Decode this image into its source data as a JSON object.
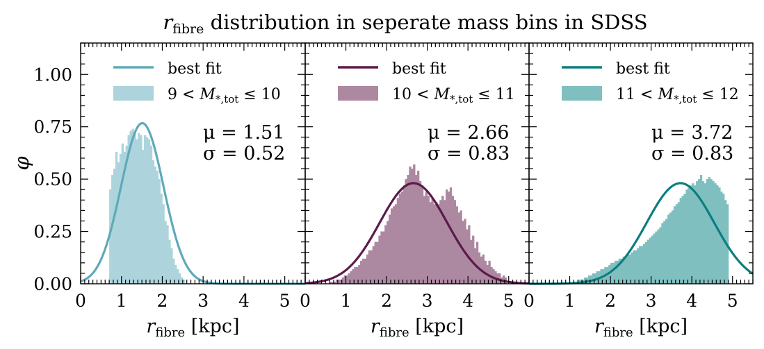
{
  "figure": {
    "title": "r_fibre distribution in seperate mass bins in SDSS",
    "title_math": "r",
    "title_sub": "fibre",
    "title_rest": " distribution in seperate mass bins in SDSS"
  },
  "chart_data": [
    {
      "type": "bar+line",
      "panel": 1,
      "xlim": [
        0,
        5.5
      ],
      "ylim": [
        0,
        1.15
      ],
      "xticks": [
        0,
        1,
        2,
        3,
        4,
        5
      ],
      "yticks": [
        0.0,
        0.25,
        0.5,
        0.75,
        1.0
      ],
      "ytick_labels": [
        "0.00",
        "0.25",
        "0.50",
        "0.75",
        "1.00"
      ],
      "xlabel": "r_fibre [kpc]",
      "ylabel": "φ",
      "legend": {
        "placement": "top-left",
        "line_label": "best fit",
        "hist_label": "9 < M*,tot ≤ 10",
        "hist_lo": "9",
        "hist_hi": "10"
      },
      "fit": {
        "mu": 1.51,
        "sigma": 0.52,
        "mu_text": "μ = 1.51",
        "sigma_text": "σ = 0.52"
      },
      "hist_color": "#add4dc",
      "line_color": "#5fa9b9",
      "hist": {
        "x_start": 0.7,
        "bin_width": 0.05,
        "values": [
          0.45,
          0.52,
          0.55,
          0.63,
          0.58,
          0.62,
          0.67,
          0.63,
          0.66,
          0.71,
          0.73,
          0.74,
          0.72,
          0.69,
          0.72,
          0.71,
          0.64,
          0.71,
          0.7,
          0.69,
          0.66,
          0.59,
          0.56,
          0.54,
          0.5,
          0.43,
          0.38,
          0.3,
          0.28,
          0.21,
          0.17,
          0.12,
          0.09,
          0.07,
          0.05,
          0.03,
          0.02
        ]
      }
    },
    {
      "type": "bar+line",
      "panel": 2,
      "xlim": [
        0,
        5.5
      ],
      "ylim": [
        0,
        1.15
      ],
      "xticks": [
        0,
        1,
        2,
        3,
        4,
        5
      ],
      "xlabel": "r_fibre [kpc]",
      "legend": {
        "placement": "top-left",
        "line_label": "best fit",
        "hist_label": "10 < M*,tot ≤ 11",
        "hist_lo": "10",
        "hist_hi": "11"
      },
      "fit": {
        "mu": 2.66,
        "sigma": 0.83,
        "mu_text": "μ = 2.66",
        "sigma_text": "σ = 0.83"
      },
      "hist_color": "#ad88a1",
      "line_color": "#5c1a4b",
      "hist": {
        "x_start": 0.6,
        "bin_width": 0.05,
        "values": [
          0.01,
          0.01,
          0.01,
          0.02,
          0.02,
          0.02,
          0.03,
          0.04,
          0.04,
          0.05,
          0.06,
          0.07,
          0.08,
          0.08,
          0.09,
          0.11,
          0.12,
          0.12,
          0.14,
          0.16,
          0.16,
          0.18,
          0.2,
          0.2,
          0.23,
          0.25,
          0.25,
          0.28,
          0.3,
          0.33,
          0.36,
          0.37,
          0.38,
          0.41,
          0.43,
          0.44,
          0.47,
          0.5,
          0.52,
          0.56,
          0.55,
          0.57,
          0.52,
          0.54,
          0.49,
          0.47,
          0.42,
          0.44,
          0.42,
          0.39,
          0.41,
          0.38,
          0.39,
          0.38,
          0.4,
          0.42,
          0.4,
          0.45,
          0.44,
          0.46,
          0.42,
          0.4,
          0.37,
          0.34,
          0.35,
          0.3,
          0.31,
          0.26,
          0.28,
          0.21,
          0.23,
          0.17,
          0.2,
          0.15,
          0.13,
          0.14,
          0.11,
          0.09,
          0.11,
          0.08,
          0.07,
          0.06,
          0.05,
          0.05,
          0.03,
          0.04,
          0.03
        ]
      }
    },
    {
      "type": "bar+line",
      "panel": 3,
      "xlim": [
        0,
        5.5
      ],
      "ylim": [
        0,
        1.15
      ],
      "xticks": [
        0,
        1,
        2,
        3,
        4,
        5
      ],
      "xlabel": "r_fibre [kpc]",
      "legend": {
        "placement": "top-left",
        "line_label": "best fit",
        "hist_label": "11 < M*,tot ≤ 12",
        "hist_lo": "11",
        "hist_hi": "12"
      },
      "fit": {
        "mu": 3.72,
        "sigma": 0.83,
        "mu_text": "μ = 3.72",
        "sigma_text": "σ = 0.83"
      },
      "hist_color": "#80bfc0",
      "line_color": "#0b7e80",
      "hist": {
        "x_start": 1.1,
        "bin_width": 0.05,
        "values": [
          0.01,
          0.01,
          0.02,
          0.02,
          0.02,
          0.03,
          0.03,
          0.04,
          0.04,
          0.05,
          0.05,
          0.06,
          0.06,
          0.07,
          0.07,
          0.08,
          0.08,
          0.09,
          0.1,
          0.1,
          0.11,
          0.11,
          0.12,
          0.12,
          0.13,
          0.13,
          0.14,
          0.14,
          0.15,
          0.16,
          0.16,
          0.17,
          0.18,
          0.18,
          0.19,
          0.2,
          0.21,
          0.22,
          0.23,
          0.24,
          0.25,
          0.26,
          0.27,
          0.29,
          0.3,
          0.31,
          0.33,
          0.34,
          0.35,
          0.37,
          0.38,
          0.39,
          0.41,
          0.42,
          0.43,
          0.45,
          0.46,
          0.47,
          0.48,
          0.47,
          0.49,
          0.5,
          0.52,
          0.49,
          0.48,
          0.5,
          0.51,
          0.5,
          0.49,
          0.48,
          0.47,
          0.46,
          0.44,
          0.43,
          0.4,
          0.38
        ]
      }
    }
  ]
}
